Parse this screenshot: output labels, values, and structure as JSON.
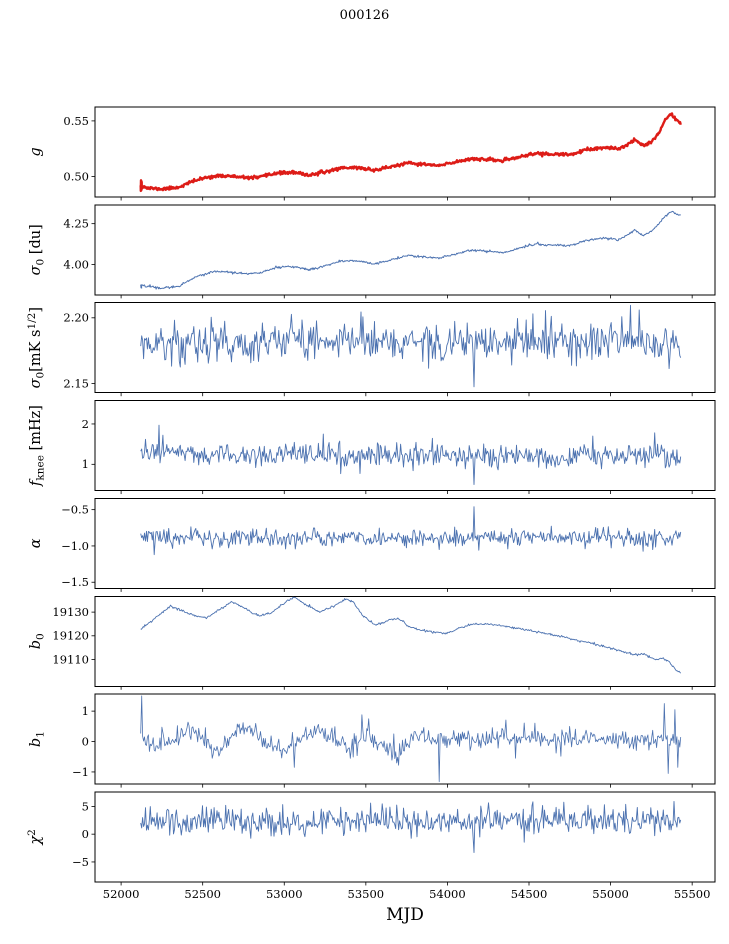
{
  "chart_data": {
    "type": "line",
    "title": "000126",
    "xlabel": "MJD",
    "x_range": [
      51840,
      55640
    ],
    "data_x_range": [
      52120,
      55430
    ],
    "x_ticks": [
      52000,
      52500,
      53000,
      53500,
      54000,
      54500,
      55000,
      55500
    ],
    "grid": false,
    "legend": "none",
    "panels": [
      {
        "name": "g",
        "label": [
          {
            "t": "g",
            "i": 1
          }
        ],
        "color": "#dd1c17",
        "lw": 2.4,
        "ylim": [
          0.4815,
          0.5625
        ],
        "yticks": [
          {
            "v": 0.5,
            "l": "0.50"
          },
          {
            "v": 0.55,
            "l": "0.55"
          }
        ],
        "n": 800,
        "seed": 11,
        "noise": 0.0007,
        "prefix": [
          [
            52120,
            0.492
          ],
          [
            52121,
            0.487
          ],
          [
            52122,
            0.4965
          ],
          [
            52123,
            0.4875
          ],
          [
            52124,
            0.496
          ],
          [
            52125,
            0.488
          ],
          [
            52126,
            0.495
          ],
          [
            52127,
            0.489
          ]
        ],
        "trend": [
          [
            52120,
            0.492
          ],
          [
            52160,
            0.4896
          ],
          [
            52250,
            0.4886
          ],
          [
            52350,
            0.4902
          ],
          [
            52450,
            0.4962
          ],
          [
            52550,
            0.5
          ],
          [
            52650,
            0.5006
          ],
          [
            52750,
            0.4988
          ],
          [
            52850,
            0.4992
          ],
          [
            52950,
            0.503
          ],
          [
            53050,
            0.5036
          ],
          [
            53150,
            0.5012
          ],
          [
            53250,
            0.504
          ],
          [
            53350,
            0.5078
          ],
          [
            53450,
            0.508
          ],
          [
            53550,
            0.5056
          ],
          [
            53650,
            0.5086
          ],
          [
            53750,
            0.5118
          ],
          [
            53850,
            0.511
          ],
          [
            53950,
            0.5096
          ],
          [
            54050,
            0.513
          ],
          [
            54150,
            0.5162
          ],
          [
            54250,
            0.515
          ],
          [
            54350,
            0.5142
          ],
          [
            54450,
            0.518
          ],
          [
            54550,
            0.5208
          ],
          [
            54650,
            0.5198
          ],
          [
            54750,
            0.5196
          ],
          [
            54850,
            0.5238
          ],
          [
            54950,
            0.5258
          ],
          [
            55050,
            0.5248
          ],
          [
            55100,
            0.5286
          ],
          [
            55150,
            0.533
          ],
          [
            55200,
            0.5282
          ],
          [
            55250,
            0.5312
          ],
          [
            55300,
            0.54
          ],
          [
            55340,
            0.5528
          ],
          [
            55370,
            0.5556
          ],
          [
            55400,
            0.552
          ],
          [
            55430,
            0.5478
          ]
        ],
        "spikes": []
      },
      {
        "name": "sigma0-du",
        "label": [
          {
            "t": "σ",
            "i": 1
          },
          {
            "t": "0",
            "sub": 1
          },
          {
            "t": " [du]"
          }
        ],
        "color": "#4c72b0",
        "lw": 1.0,
        "ylim": [
          3.815,
          4.365
        ],
        "yticks": [
          {
            "v": 4.0,
            "l": "4.00"
          },
          {
            "v": 4.25,
            "l": "4.25"
          }
        ],
        "n": 700,
        "seed": 22,
        "noise": 0.0035,
        "prefix": [
          [
            52120,
            3.878
          ],
          [
            52122,
            3.858
          ],
          [
            52124,
            3.876
          ],
          [
            52126,
            3.856
          ]
        ],
        "trend": [
          [
            52120,
            3.874
          ],
          [
            52250,
            3.856
          ],
          [
            52350,
            3.868
          ],
          [
            52450,
            3.922
          ],
          [
            52550,
            3.952
          ],
          [
            52650,
            3.958
          ],
          [
            52750,
            3.944
          ],
          [
            52850,
            3.948
          ],
          [
            52950,
            3.982
          ],
          [
            53050,
            3.988
          ],
          [
            53150,
            3.968
          ],
          [
            53250,
            3.992
          ],
          [
            53350,
            4.022
          ],
          [
            53450,
            4.024
          ],
          [
            53550,
            4.004
          ],
          [
            53650,
            4.028
          ],
          [
            53750,
            4.054
          ],
          [
            53850,
            4.048
          ],
          [
            53950,
            4.038
          ],
          [
            54050,
            4.064
          ],
          [
            54150,
            4.09
          ],
          [
            54250,
            4.08
          ],
          [
            54350,
            4.074
          ],
          [
            54450,
            4.104
          ],
          [
            54550,
            4.126
          ],
          [
            54650,
            4.118
          ],
          [
            54750,
            4.116
          ],
          [
            54850,
            4.148
          ],
          [
            54950,
            4.162
          ],
          [
            55050,
            4.152
          ],
          [
            55100,
            4.178
          ],
          [
            55150,
            4.212
          ],
          [
            55200,
            4.178
          ],
          [
            55250,
            4.202
          ],
          [
            55300,
            4.258
          ],
          [
            55340,
            4.302
          ],
          [
            55370,
            4.326
          ],
          [
            55400,
            4.312
          ],
          [
            55430,
            4.3
          ]
        ],
        "spikes": []
      },
      {
        "name": "sigma0-mks",
        "label": [
          {
            "t": "σ",
            "i": 1
          },
          {
            "t": "0",
            "sub": 1
          },
          {
            "t": "[mK s"
          },
          {
            "t": "1/2",
            "sup": 1
          },
          {
            "t": "]"
          }
        ],
        "color": "#4c72b0",
        "lw": 0.9,
        "ylim": [
          2.143,
          2.2115
        ],
        "yticks": [
          {
            "v": 2.15,
            "l": "2.15"
          },
          {
            "v": 2.2,
            "l": "2.20"
          }
        ],
        "n": 560,
        "seed": 33,
        "noise": 0.0075,
        "trend": [
          [
            52120,
            2.179
          ],
          [
            52600,
            2.181
          ],
          [
            53000,
            2.1815
          ],
          [
            53450,
            2.184
          ],
          [
            54000,
            2.18
          ],
          [
            54500,
            2.1815
          ],
          [
            55000,
            2.1825
          ],
          [
            55430,
            2.179
          ]
        ],
        "spikes": [
          [
            54160,
            2.1475
          ],
          [
            53470,
            2.2045
          ],
          [
            55120,
            2.2095
          ],
          [
            55175,
            2.206
          ],
          [
            55300,
            2.171
          ]
        ]
      },
      {
        "name": "f-knee",
        "label": [
          {
            "t": "f",
            "i": 1
          },
          {
            "t": "knee",
            "sub": 1
          },
          {
            "t": " [mHz]"
          }
        ],
        "color": "#4c72b0",
        "lw": 0.9,
        "ylim": [
          0.35,
          2.58
        ],
        "yticks": [
          {
            "v": 1,
            "l": "1"
          },
          {
            "v": 2,
            "l": "2"
          }
        ],
        "n": 560,
        "seed": 44,
        "noise": 0.14,
        "trend": [
          [
            52120,
            1.28
          ],
          [
            52300,
            1.3
          ],
          [
            52600,
            1.22
          ],
          [
            53000,
            1.2
          ],
          [
            53500,
            1.22
          ],
          [
            54000,
            1.18
          ],
          [
            54500,
            1.2
          ],
          [
            55000,
            1.21
          ],
          [
            55430,
            1.18
          ]
        ],
        "spikes": [
          [
            52150,
            1.62
          ],
          [
            52230,
            1.97
          ],
          [
            52255,
            1.72
          ],
          [
            53240,
            1.75
          ],
          [
            54160,
            0.5
          ],
          [
            54890,
            1.7
          ],
          [
            55270,
            1.78
          ]
        ]
      },
      {
        "name": "alpha",
        "label": [
          {
            "t": "α",
            "i": 1
          }
        ],
        "color": "#4c72b0",
        "lw": 0.9,
        "ylim": [
          -1.585,
          -0.345
        ],
        "yticks": [
          {
            "v": -1.5,
            "l": "−1.5"
          },
          {
            "v": -1.0,
            "l": "−1.0"
          },
          {
            "v": -0.5,
            "l": "−0.5"
          }
        ],
        "n": 560,
        "seed": 55,
        "noise": 0.062,
        "trend": [
          [
            52120,
            -0.885
          ],
          [
            53000,
            -0.893
          ],
          [
            54000,
            -0.885
          ],
          [
            55000,
            -0.89
          ],
          [
            55430,
            -0.885
          ]
        ],
        "spikes": [
          [
            52200,
            -1.12
          ],
          [
            53950,
            -1.05
          ],
          [
            54160,
            -0.46
          ],
          [
            55260,
            -1.05
          ]
        ]
      },
      {
        "name": "b0",
        "label": [
          {
            "t": "b",
            "i": 1
          },
          {
            "t": "0",
            "sub": 1
          }
        ],
        "color": "#4c72b0",
        "lw": 0.9,
        "ylim": [
          19098.7,
          19136.7
        ],
        "yticks": [
          {
            "v": 19110,
            "l": "19110"
          },
          {
            "v": 19120,
            "l": "19120"
          },
          {
            "v": 19130,
            "l": "19130"
          }
        ],
        "n": 650,
        "seed": 66,
        "noise": 0.22,
        "trend": [
          [
            52120,
            19122.5
          ],
          [
            52200,
            19127.0
          ],
          [
            52300,
            19132.5
          ],
          [
            52380,
            19130.5
          ],
          [
            52450,
            19128.5
          ],
          [
            52520,
            19127.5
          ],
          [
            52600,
            19131.0
          ],
          [
            52680,
            19134.5
          ],
          [
            52760,
            19131.5
          ],
          [
            52840,
            19128.5
          ],
          [
            52920,
            19129.5
          ],
          [
            53000,
            19134.0
          ],
          [
            53060,
            19136.3
          ],
          [
            53140,
            19133.0
          ],
          [
            53220,
            19130.0
          ],
          [
            53300,
            19132.5
          ],
          [
            53380,
            19135.5
          ],
          [
            53420,
            19134.5
          ],
          [
            53480,
            19128.5
          ],
          [
            53560,
            19124.5
          ],
          [
            53640,
            19126.5
          ],
          [
            53700,
            19127.5
          ],
          [
            53760,
            19124.0
          ],
          [
            53840,
            19122.5
          ],
          [
            53920,
            19121.5
          ],
          [
            54000,
            19121.0
          ],
          [
            54080,
            19123.5
          ],
          [
            54160,
            19125.0
          ],
          [
            54240,
            19125.0
          ],
          [
            54320,
            19124.5
          ],
          [
            54400,
            19123.5
          ],
          [
            54480,
            19122.5
          ],
          [
            54560,
            19121.5
          ],
          [
            54640,
            19120.5
          ],
          [
            54720,
            19119.5
          ],
          [
            54800,
            19118.0
          ],
          [
            54880,
            19117.0
          ],
          [
            54960,
            19115.5
          ],
          [
            55040,
            19114.0
          ],
          [
            55120,
            19112.5
          ],
          [
            55160,
            19112.0
          ],
          [
            55200,
            19112.5
          ],
          [
            55240,
            19111.0
          ],
          [
            55280,
            19110.0
          ],
          [
            55320,
            19110.5
          ],
          [
            55360,
            19109.0
          ],
          [
            55400,
            19105.5
          ],
          [
            55430,
            19104.5
          ]
        ],
        "spikes": []
      },
      {
        "name": "b1",
        "label": [
          {
            "t": "b",
            "i": 1
          },
          {
            "t": "1",
            "sub": 1
          }
        ],
        "color": "#4c72b0",
        "lw": 0.8,
        "ylim": [
          -1.4,
          1.56
        ],
        "yticks": [
          {
            "v": -1,
            "l": "−1"
          },
          {
            "v": 0,
            "l": "0"
          },
          {
            "v": 1,
            "l": "1"
          }
        ],
        "n": 560,
        "seed": 77,
        "noise": 0.17,
        "trend": [
          [
            52120,
            0.05
          ],
          [
            52200,
            -0.18
          ],
          [
            52300,
            0.15
          ],
          [
            52400,
            0.34
          ],
          [
            52500,
            0.08
          ],
          [
            52600,
            -0.24
          ],
          [
            52700,
            0.28
          ],
          [
            52800,
            0.34
          ],
          [
            52900,
            -0.08
          ],
          [
            53000,
            -0.32
          ],
          [
            53100,
            0.1
          ],
          [
            53200,
            0.3
          ],
          [
            53300,
            0.18
          ],
          [
            53400,
            -0.2
          ],
          [
            53500,
            0.28
          ],
          [
            53600,
            -0.28
          ],
          [
            53700,
            -0.38
          ],
          [
            53800,
            0.18
          ],
          [
            53900,
            0.08
          ],
          [
            54000,
            0.12
          ],
          [
            54200,
            0.1
          ],
          [
            54400,
            0.12
          ],
          [
            54600,
            0.08
          ],
          [
            54800,
            0.1
          ],
          [
            55000,
            0.08
          ],
          [
            55200,
            0.05
          ],
          [
            55430,
            0.02
          ]
        ],
        "spikes": [
          [
            52124,
            1.5
          ],
          [
            53060,
            -0.85
          ],
          [
            53475,
            0.88
          ],
          [
            53520,
            0.75
          ],
          [
            53700,
            -0.78
          ],
          [
            53950,
            -1.32
          ],
          [
            54420,
            -0.55
          ],
          [
            55330,
            1.25
          ],
          [
            55355,
            -1.05
          ],
          [
            55395,
            1.05
          ],
          [
            55415,
            -0.85
          ]
        ]
      },
      {
        "name": "chi2",
        "label": [
          {
            "t": "χ",
            "i": 1
          },
          {
            "t": "2",
            "sup": 1
          }
        ],
        "color": "#4c72b0",
        "lw": 0.9,
        "ylim": [
          -8.6,
          7.6
        ],
        "yticks": [
          {
            "v": -5,
            "l": "−5"
          },
          {
            "v": 0,
            "l": "0"
          },
          {
            "v": 5,
            "l": "5"
          }
        ],
        "n": 560,
        "seed": 88,
        "noise": 1.25,
        "trend": [
          [
            52120,
            2.3
          ],
          [
            53000,
            2.5
          ],
          [
            54000,
            2.3
          ],
          [
            55000,
            2.5
          ],
          [
            55430,
            2.6
          ]
        ],
        "spikes": [
          [
            52640,
            5.2
          ],
          [
            53530,
            5.6
          ],
          [
            54160,
            -3.3
          ],
          [
            54960,
            5.3
          ],
          [
            55390,
            5.9
          ]
        ]
      }
    ]
  }
}
